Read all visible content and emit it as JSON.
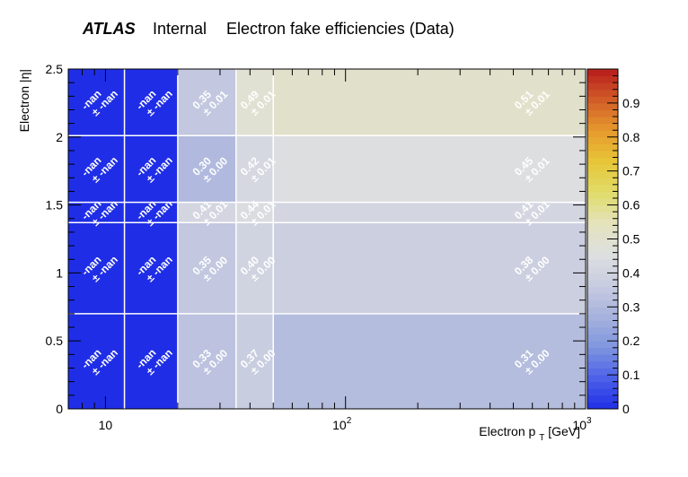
{
  "header": {
    "experiment": "ATLAS",
    "status": "Internal",
    "title": "Electron fake efficiencies (Data)"
  },
  "chart_data": {
    "type": "heatmap",
    "xlabel": "Electron p_T [GeV]",
    "ylabel": "Electron |η|",
    "xscale": "log",
    "xlim": [
      7,
      1000
    ],
    "ylim": [
      0,
      2.5
    ],
    "x_edges": [
      7,
      12,
      20,
      35,
      50,
      1000
    ],
    "y_edges": [
      0,
      0.7,
      1.37,
      1.52,
      2.01,
      2.5
    ],
    "x_ticks": [
      {
        "value": 10,
        "label": "10"
      },
      {
        "value": 100,
        "label": "10",
        "exp": "2"
      },
      {
        "value": 1000,
        "label": "10",
        "exp": "3"
      }
    ],
    "y_ticks": [
      {
        "value": 0,
        "label": "0"
      },
      {
        "value": 0.5,
        "label": "0.5"
      },
      {
        "value": 1,
        "label": "1"
      },
      {
        "value": 1.5,
        "label": "1.5"
      },
      {
        "value": 2,
        "label": "2"
      },
      {
        "value": 2.5,
        "label": "2.5"
      }
    ],
    "z_range": [
      0,
      1
    ],
    "colorbar_ticks": [
      "0",
      "0.1",
      "0.2",
      "0.3",
      "0.4",
      "0.5",
      "0.6",
      "0.7",
      "0.8",
      "0.9"
    ],
    "palette": [
      "#1f2ee6",
      "#4c61e8",
      "#7f95de",
      "#a7b2dd",
      "#c8cce0",
      "#dddfe0",
      "#e4e3bd",
      "#e0dc6a",
      "#e7c637",
      "#e69a2d",
      "#d25d28",
      "#b71c1c"
    ],
    "grid": true,
    "cells": [
      {
        "row": 0,
        "col": 0,
        "value": null,
        "label": "-nan",
        "error": "± -nan"
      },
      {
        "row": 0,
        "col": 1,
        "value": null,
        "label": "-nan",
        "error": "± -nan"
      },
      {
        "row": 0,
        "col": 2,
        "value": 0.33,
        "label": "0.33",
        "error": "± 0.00"
      },
      {
        "row": 0,
        "col": 3,
        "value": 0.37,
        "label": "0.37",
        "error": "± 0.00"
      },
      {
        "row": 0,
        "col": 4,
        "value": 0.31,
        "label": "0.31",
        "error": "± 0.00"
      },
      {
        "row": 1,
        "col": 0,
        "value": null,
        "label": "-nan",
        "error": "± -nan"
      },
      {
        "row": 1,
        "col": 1,
        "value": null,
        "label": "-nan",
        "error": "± -nan"
      },
      {
        "row": 1,
        "col": 2,
        "value": 0.35,
        "label": "0.35",
        "error": "± 0.00"
      },
      {
        "row": 1,
        "col": 3,
        "value": 0.4,
        "label": "0.40",
        "error": "± 0.00"
      },
      {
        "row": 1,
        "col": 4,
        "value": 0.38,
        "label": "0.38",
        "error": "± 0.00"
      },
      {
        "row": 2,
        "col": 0,
        "value": null,
        "label": "-nan",
        "error": "± -nan"
      },
      {
        "row": 2,
        "col": 1,
        "value": null,
        "label": "-nan",
        "error": "± -nan"
      },
      {
        "row": 2,
        "col": 2,
        "value": 0.41,
        "label": "0.41",
        "error": "± 0.01"
      },
      {
        "row": 2,
        "col": 3,
        "value": 0.44,
        "label": "0.44",
        "error": "± 0.01"
      },
      {
        "row": 2,
        "col": 4,
        "value": 0.41,
        "label": "0.41",
        "error": "± 0.01"
      },
      {
        "row": 3,
        "col": 0,
        "value": null,
        "label": "-nan",
        "error": "± -nan"
      },
      {
        "row": 3,
        "col": 1,
        "value": null,
        "label": "-nan",
        "error": "± -nan"
      },
      {
        "row": 3,
        "col": 2,
        "value": 0.3,
        "label": "0.30",
        "error": "± 0.00"
      },
      {
        "row": 3,
        "col": 3,
        "value": 0.42,
        "label": "0.42",
        "error": "± 0.01"
      },
      {
        "row": 3,
        "col": 4,
        "value": 0.45,
        "label": "0.45",
        "error": "± 0.01"
      },
      {
        "row": 4,
        "col": 0,
        "value": null,
        "label": "-nan",
        "error": "± -nan"
      },
      {
        "row": 4,
        "col": 1,
        "value": null,
        "label": "-nan",
        "error": "± -nan"
      },
      {
        "row": 4,
        "col": 2,
        "value": 0.35,
        "label": "0.35",
        "error": "± 0.01"
      },
      {
        "row": 4,
        "col": 3,
        "value": 0.49,
        "label": "0.49",
        "error": "± 0.01"
      },
      {
        "row": 4,
        "col": 4,
        "value": 0.51,
        "label": "0.51",
        "error": "± 0.01"
      }
    ]
  }
}
